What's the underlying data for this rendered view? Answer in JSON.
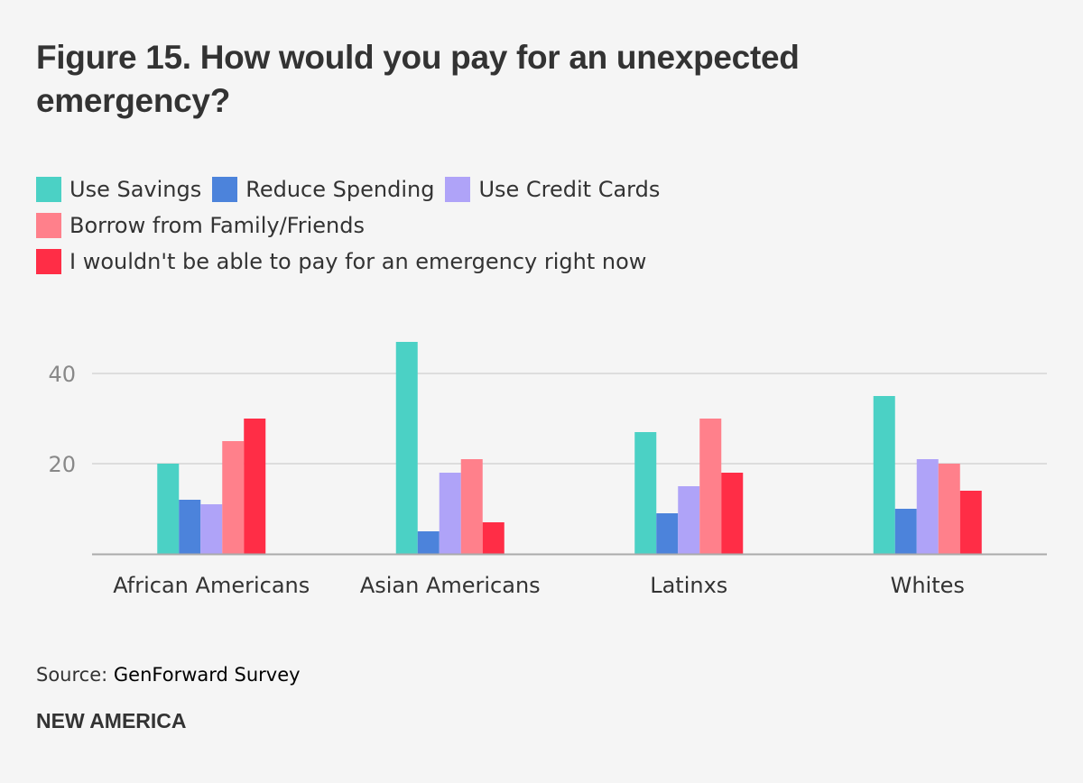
{
  "title": "Figure 15. How would you pay for an unexpected emergency?",
  "legend": [
    {
      "label": "Use Savings",
      "color": "#4bd1c5"
    },
    {
      "label": "Reduce Spending",
      "color": "#4c83db"
    },
    {
      "label": "Use Credit Cards",
      "color": "#afa3f8"
    },
    {
      "label": "Borrow from Family/Friends",
      "color": "#ff808b"
    },
    {
      "label": "I wouldn't be able to pay for an emergency right now",
      "color": "#ff2d46"
    }
  ],
  "source_label": "Source:",
  "source_value": "GenForward Survey",
  "brand": "NEW AMERICA",
  "chart_data": {
    "type": "bar",
    "title": "Figure 15. How would you pay for an unexpected emergency?",
    "xlabel": "",
    "ylabel": "",
    "categories": [
      "African Americans",
      "Asian Americans",
      "Latinxs",
      "Whites"
    ],
    "series": [
      {
        "name": "Use Savings",
        "color": "#4bd1c5",
        "values": [
          20,
          47,
          27,
          35
        ]
      },
      {
        "name": "Reduce Spending",
        "color": "#4c83db",
        "values": [
          12,
          5,
          9,
          10
        ]
      },
      {
        "name": "Use Credit Cards",
        "color": "#afa3f8",
        "values": [
          11,
          18,
          15,
          21
        ]
      },
      {
        "name": "Borrow from Family/Friends",
        "color": "#ff808b",
        "values": [
          25,
          21,
          30,
          20
        ]
      },
      {
        "name": "I wouldn't be able to pay for an emergency right now",
        "color": "#ff2d46",
        "values": [
          30,
          7,
          18,
          14
        ]
      }
    ],
    "ylim": [
      0,
      48
    ],
    "yticks": [
      20,
      40
    ],
    "ytick_labels": [
      "20",
      "40"
    ],
    "grid": true,
    "legend_position": "top-left"
  }
}
